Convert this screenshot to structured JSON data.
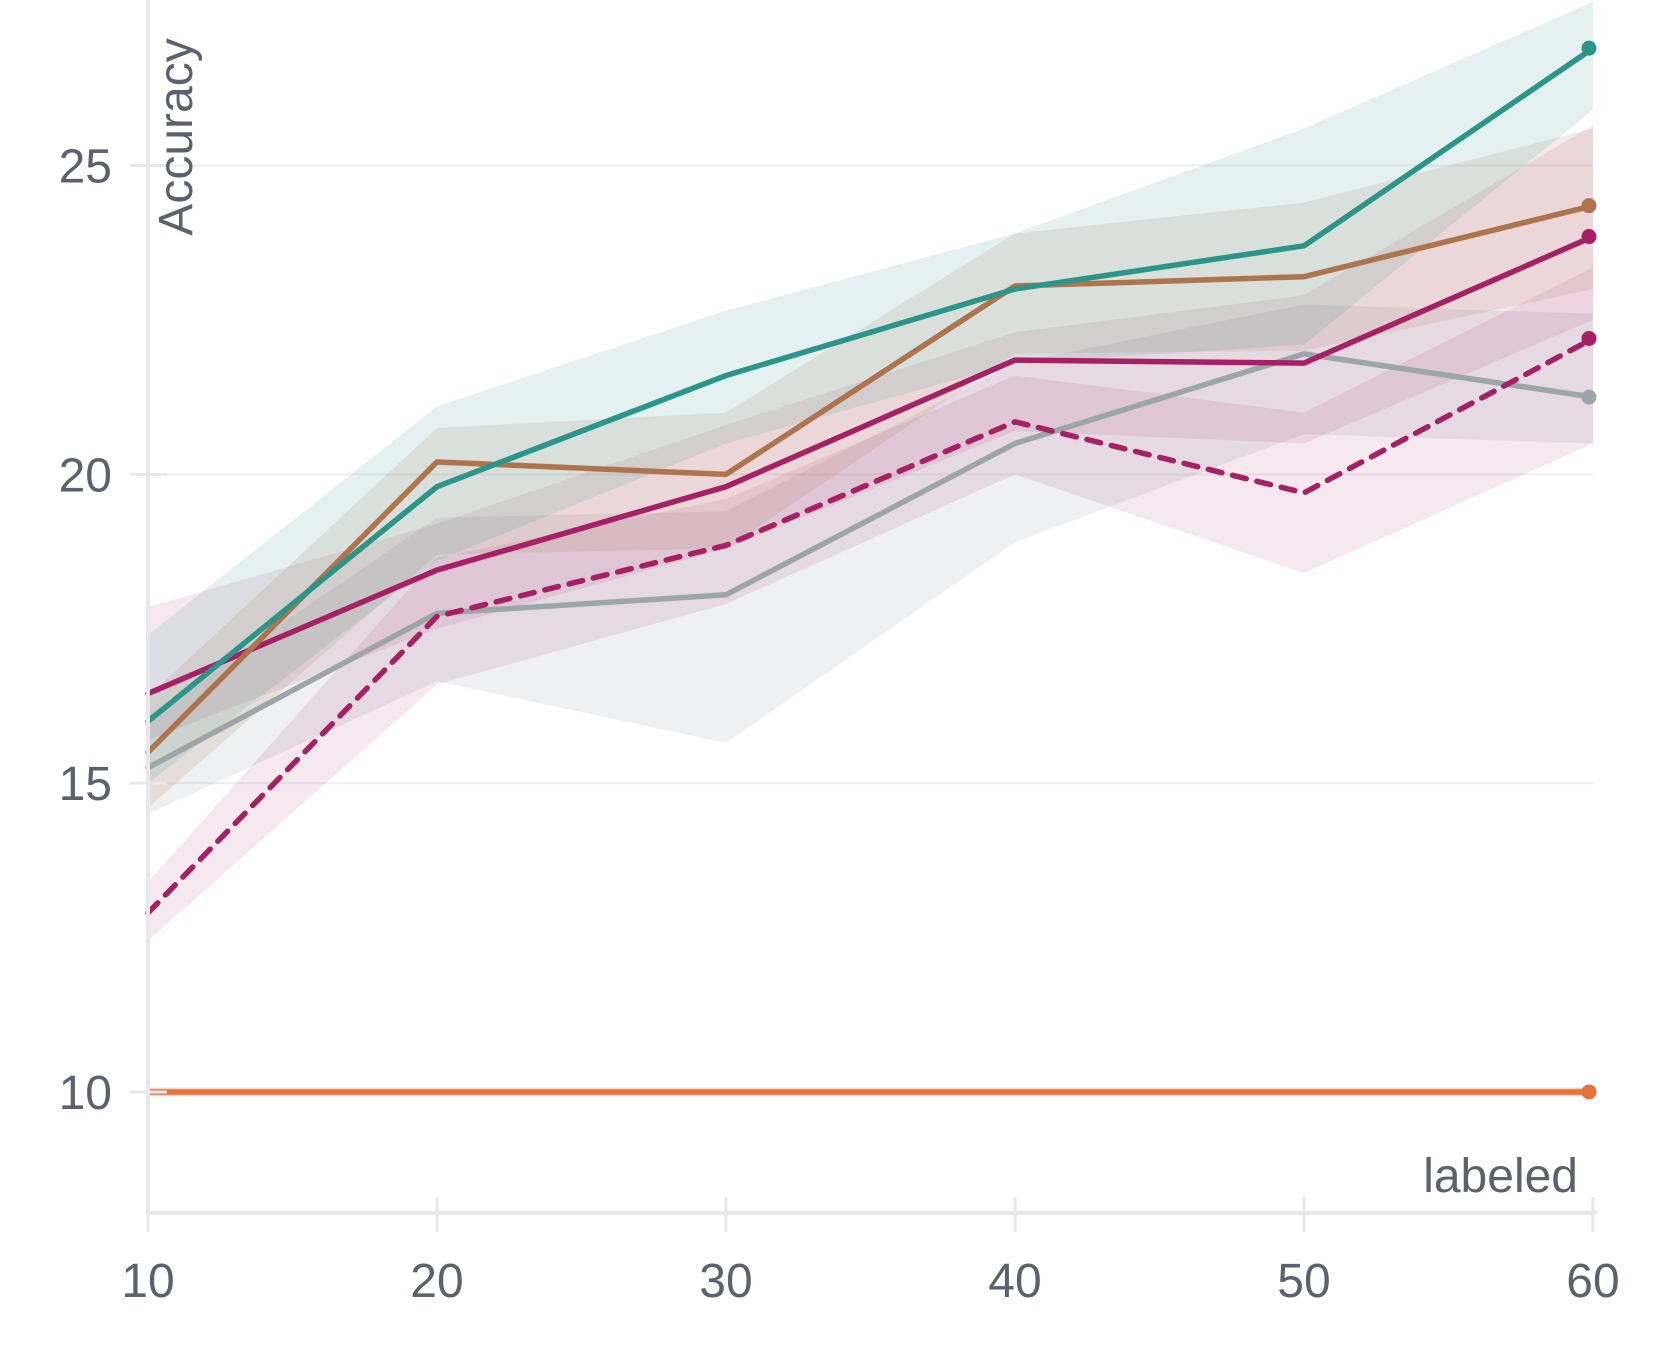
{
  "chart_data": {
    "type": "line",
    "title": "",
    "xlabel": "labeled",
    "ylabel": "Accuracy",
    "legend": "none",
    "grid": "horizontal-only",
    "x": [
      10,
      20,
      30,
      40,
      50,
      60
    ],
    "x_ticks": [
      10,
      20,
      30,
      40,
      50,
      60
    ],
    "y_ticks": [
      10,
      15,
      20,
      25
    ],
    "xlim": [
      10,
      60
    ],
    "ylim_visible": [
      8.0,
      27.7
    ],
    "axis_map": {
      "x0": 10,
      "x1": 60,
      "px0": 148,
      "px1": 1593,
      "ytop_val": 27.68,
      "ybot_val": 8.04,
      "py_top": 0,
      "py_bot": 1213
    },
    "colors": {
      "axis": "#e8e8ec",
      "grid": "#efeff2",
      "text": "#5d616d",
      "background": "#ffffff"
    },
    "draw_order": [
      "gray",
      "dashed-magenta",
      "magenta",
      "brown",
      "teal",
      "orange"
    ],
    "series": [
      {
        "name": "teal",
        "color": "#2b9589",
        "band_color": "rgba(43,149,137,0.13)",
        "style": "solid",
        "end_marker": true,
        "values": [
          16.0,
          19.8,
          21.6,
          23.0,
          23.7,
          26.9
        ],
        "band_lo": [
          15.0,
          18.6,
          20.5,
          21.8,
          22.1,
          25.9
        ],
        "band_hi": [
          17.4,
          21.1,
          22.65,
          23.9,
          25.6,
          27.65
        ]
      },
      {
        "name": "brown",
        "color": "#ad744e",
        "band_color": "rgba(173,116,78,0.14)",
        "style": "solid",
        "end_marker": true,
        "values": [
          15.5,
          20.2,
          20.0,
          23.05,
          23.2,
          24.35
        ],
        "band_lo": [
          14.6,
          18.7,
          18.8,
          21.95,
          22.0,
          23.0
        ],
        "band_hi": [
          16.4,
          20.75,
          21.0,
          23.9,
          24.4,
          25.6
        ]
      },
      {
        "name": "magenta",
        "color": "#a62064",
        "band_color": "rgba(167,32,101,0.10)",
        "style": "solid",
        "end_marker": true,
        "values": [
          16.45,
          18.45,
          19.8,
          21.85,
          21.8,
          23.85
        ],
        "band_lo": [
          15.7,
          17.5,
          18.8,
          20.7,
          20.5,
          22.5
        ],
        "band_hi": [
          17.85,
          19.2,
          20.8,
          22.3,
          22.9,
          25.65
        ]
      },
      {
        "name": "dashed-magenta",
        "color": "#a62064",
        "band_color": "rgba(167,32,101,0.10)",
        "style": "dashed",
        "end_marker": true,
        "values": [
          12.9,
          17.7,
          18.85,
          20.85,
          19.7,
          22.2
        ],
        "band_lo": [
          12.45,
          16.6,
          17.9,
          20.0,
          18.4,
          20.5
        ],
        "band_hi": [
          13.4,
          18.65,
          19.6,
          21.6,
          21.0,
          23.35
        ]
      },
      {
        "name": "gray",
        "color": "#9ca6a8",
        "band_color": "rgba(140,152,160,0.15)",
        "style": "solid",
        "end_marker": true,
        "values": [
          15.25,
          17.75,
          18.05,
          20.5,
          21.95,
          21.25
        ],
        "band_lo": [
          14.5,
          16.65,
          15.65,
          18.9,
          20.65,
          20.5
        ],
        "band_hi": [
          16.1,
          19.3,
          19.4,
          21.8,
          22.75,
          22.6
        ]
      },
      {
        "name": "orange",
        "color": "#e2743c",
        "band_color": "rgba(226,116,60,0.30)",
        "style": "solid",
        "end_marker": true,
        "values": [
          10,
          10,
          10,
          10,
          10,
          10
        ],
        "band_lo": [
          9.93,
          9.93,
          9.93,
          9.93,
          9.93,
          9.93
        ],
        "band_hi": [
          10.07,
          10.07,
          10.07,
          10.07,
          10.07,
          10.07
        ]
      }
    ]
  }
}
